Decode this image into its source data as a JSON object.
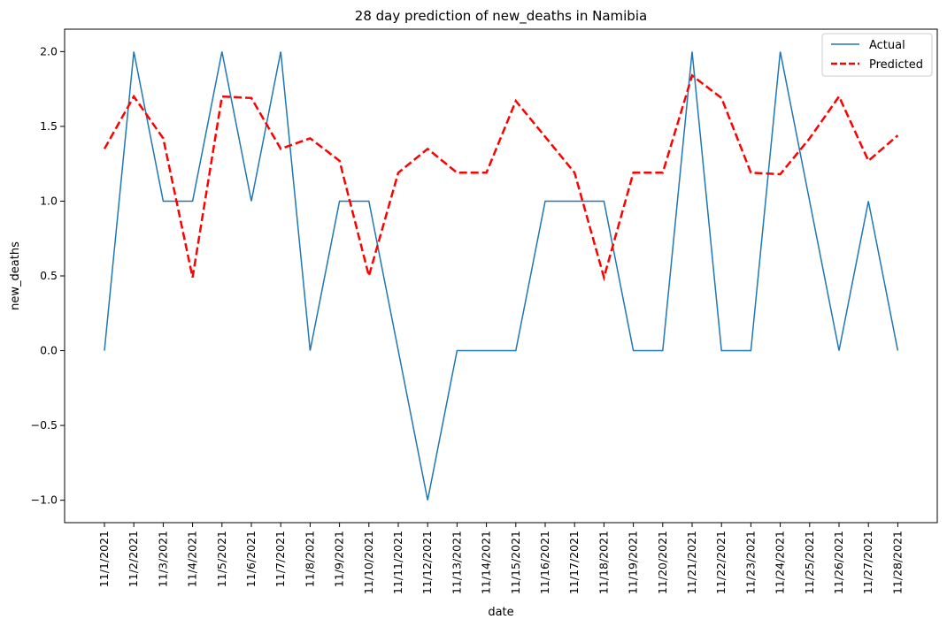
{
  "chart_data": {
    "type": "line",
    "title": "28 day prediction of new_deaths in Namibia",
    "xlabel": "date",
    "ylabel": "new_deaths",
    "x": [
      "11/1/2021",
      "11/2/2021",
      "11/3/2021",
      "11/4/2021",
      "11/5/2021",
      "11/6/2021",
      "11/7/2021",
      "11/8/2021",
      "11/9/2021",
      "11/10/2021",
      "11/11/2021",
      "11/12/2021",
      "11/13/2021",
      "11/14/2021",
      "11/15/2021",
      "11/16/2021",
      "11/17/2021",
      "11/18/2021",
      "11/19/2021",
      "11/20/2021",
      "11/21/2021",
      "11/22/2021",
      "11/23/2021",
      "11/24/2021",
      "11/25/2021",
      "11/26/2021",
      "11/27/2021",
      "11/28/2021"
    ],
    "ylim": [
      -1.15,
      2.15
    ],
    "yticks": [
      -1.0,
      -0.5,
      0.0,
      0.5,
      1.0,
      1.5,
      2.0
    ],
    "ytick_labels": [
      "−1.0",
      "−0.5",
      "0.0",
      "0.5",
      "1.0",
      "1.5",
      "2.0"
    ],
    "grid": false,
    "legend_position": "top-right",
    "series": [
      {
        "name": "Actual",
        "color": "#1f77b4",
        "style": "solid",
        "values": [
          0,
          2,
          1,
          1,
          2,
          1,
          2,
          0,
          1,
          1,
          0,
          -1,
          0,
          0,
          0,
          1,
          1,
          1,
          0,
          0,
          2,
          0,
          0,
          2,
          1,
          0,
          1,
          0
        ]
      },
      {
        "name": "Predicted",
        "color": "#ff0000",
        "style": "dashed",
        "values": [
          1.35,
          1.7,
          1.42,
          0.49,
          1.7,
          1.69,
          1.35,
          1.42,
          1.27,
          0.5,
          1.19,
          1.35,
          1.19,
          1.19,
          1.67,
          1.43,
          1.19,
          0.49,
          1.19,
          1.19,
          1.84,
          1.69,
          1.19,
          1.18,
          1.42,
          1.7,
          1.27,
          1.44
        ]
      }
    ]
  }
}
